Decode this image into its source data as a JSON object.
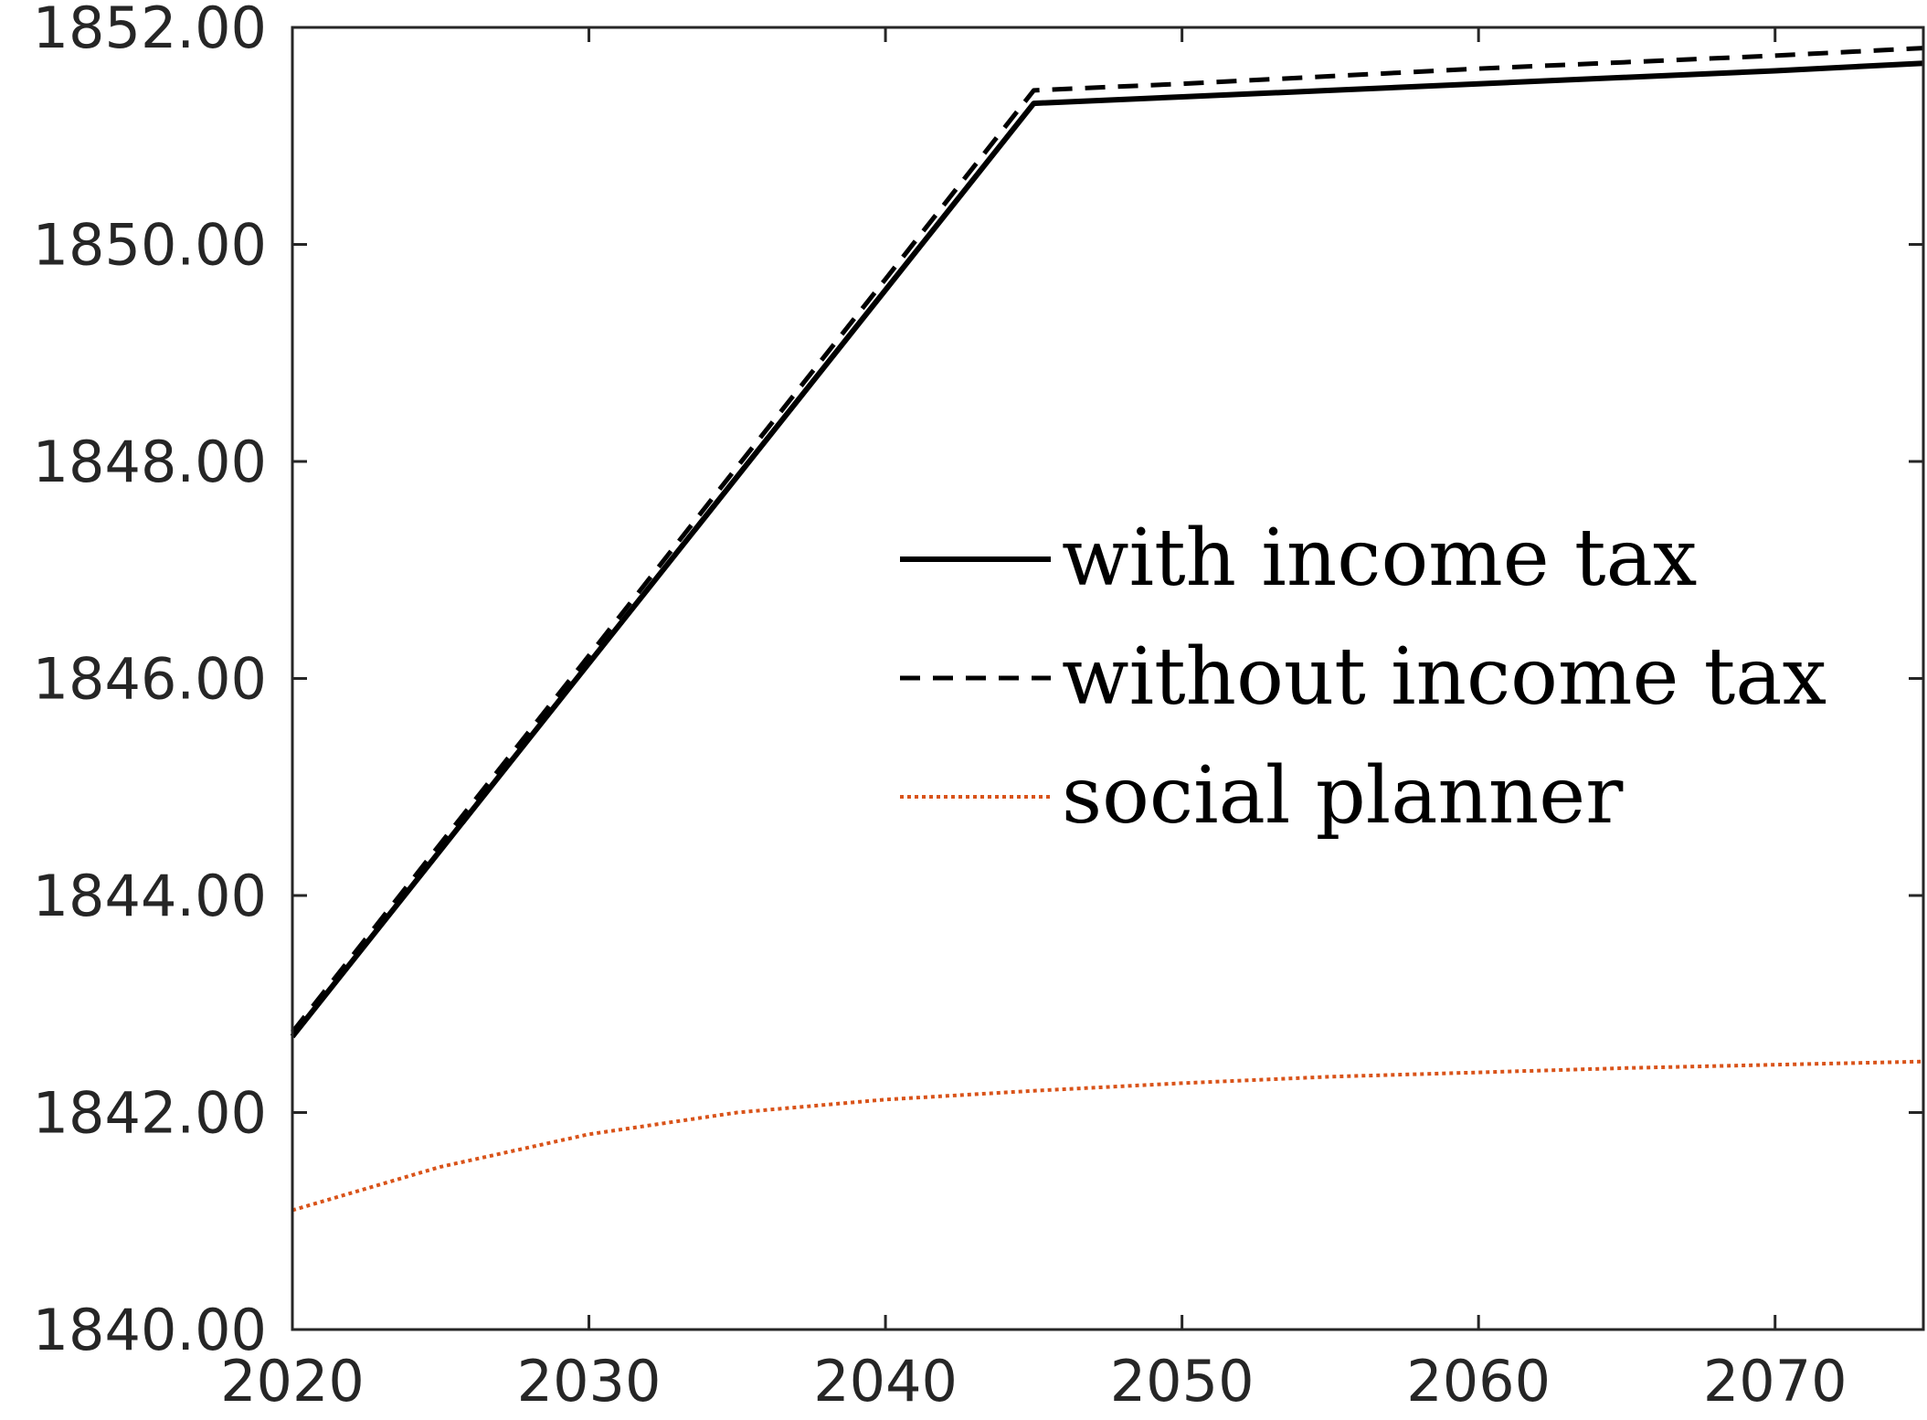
{
  "chart_data": {
    "type": "line",
    "title": "",
    "xlabel": "",
    "ylabel": "",
    "xlim": [
      2020,
      2075
    ],
    "ylim": [
      1840,
      1852
    ],
    "x_ticks": [
      2020,
      2030,
      2040,
      2050,
      2060,
      2070
    ],
    "y_ticks": [
      1840,
      1842,
      1844,
      1846,
      1848,
      1850,
      1852
    ],
    "x_tick_labels": [
      "2020",
      "2030",
      "2040",
      "2050",
      "2060",
      "2070"
    ],
    "y_tick_labels": [
      "1840.00",
      "1842.00",
      "1844.00",
      "1846.00",
      "1848.00",
      "1850.00",
      "1852.00"
    ],
    "grid": false,
    "legend_position": "center-right",
    "series": [
      {
        "name": "with income tax",
        "style": "solid",
        "color": "#000000",
        "x": [
          2020,
          2025,
          2030,
          2035,
          2040,
          2045,
          2050,
          2055,
          2060,
          2065,
          2070,
          2075
        ],
        "y": [
          1842.7,
          1844.42,
          1846.14,
          1847.86,
          1849.58,
          1851.3,
          1851.36,
          1851.42,
          1851.48,
          1851.54,
          1851.6,
          1851.67
        ]
      },
      {
        "name": "without income tax",
        "style": "dashed",
        "color": "#000000",
        "x": [
          2020,
          2025,
          2030,
          2035,
          2040,
          2045,
          2050,
          2055,
          2060,
          2065,
          2070,
          2075
        ],
        "y": [
          1842.74,
          1844.48,
          1846.21,
          1847.95,
          1849.68,
          1851.42,
          1851.48,
          1851.55,
          1851.62,
          1851.68,
          1851.74,
          1851.81
        ]
      },
      {
        "name": "social planner",
        "style": "dotted",
        "color": "#d95319",
        "x": [
          2020,
          2025,
          2030,
          2035,
          2040,
          2045,
          2050,
          2055,
          2060,
          2065,
          2070,
          2075
        ],
        "y": [
          1841.1,
          1841.5,
          1841.8,
          1842.0,
          1842.12,
          1842.2,
          1842.27,
          1842.33,
          1842.37,
          1842.41,
          1842.44,
          1842.47
        ]
      }
    ]
  }
}
